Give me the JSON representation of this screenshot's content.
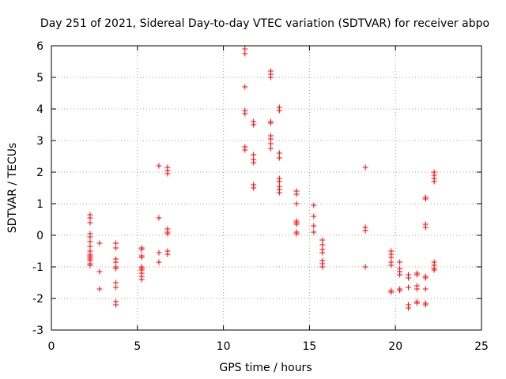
{
  "chart_data": {
    "type": "scatter",
    "title": "Day 251 of 2021, Sidereal Day-to-day VTEC variation (SDTVAR) for receiver abpo",
    "xlabel": "GPS time / hours",
    "ylabel": "SDTVAR / TECUs",
    "xlim": [
      0,
      25
    ],
    "ylim": [
      -3,
      6
    ],
    "xticks": [
      "0",
      "5",
      "10",
      "15",
      "20",
      "25"
    ],
    "yticks": [
      "-3",
      "-2",
      "-1",
      "0",
      "1",
      "2",
      "3",
      "4",
      "5",
      "6"
    ],
    "grid": true,
    "marker": "+",
    "marker_color": "#ff0000",
    "series": [
      {
        "name": "SDTVAR",
        "points": [
          [
            2.25,
            0.65
          ],
          [
            2.25,
            0.55
          ],
          [
            2.25,
            0.4
          ],
          [
            2.25,
            0.05
          ],
          [
            2.25,
            -0.05
          ],
          [
            2.25,
            -0.2
          ],
          [
            2.25,
            -0.35
          ],
          [
            2.25,
            -0.5
          ],
          [
            2.25,
            -0.6
          ],
          [
            2.25,
            -0.65
          ],
          [
            2.25,
            -0.7
          ],
          [
            2.25,
            -0.75
          ],
          [
            2.25,
            -0.8
          ],
          [
            2.25,
            -0.9
          ],
          [
            2.25,
            -0.95
          ],
          [
            2.8,
            -0.25
          ],
          [
            2.8,
            -1.15
          ],
          [
            2.8,
            -1.7
          ],
          [
            3.75,
            -0.25
          ],
          [
            3.75,
            -0.4
          ],
          [
            3.75,
            -0.75
          ],
          [
            3.75,
            -0.85
          ],
          [
            3.75,
            -1.0
          ],
          [
            3.75,
            -1.05
          ],
          [
            3.75,
            -1.5
          ],
          [
            3.75,
            -1.65
          ],
          [
            3.75,
            -2.1
          ],
          [
            3.75,
            -2.2
          ],
          [
            5.25,
            -0.4
          ],
          [
            5.25,
            -0.45
          ],
          [
            5.25,
            -0.65
          ],
          [
            5.25,
            -0.7
          ],
          [
            5.25,
            -1.0
          ],
          [
            5.25,
            -1.05
          ],
          [
            5.25,
            -1.1
          ],
          [
            5.25,
            -1.2
          ],
          [
            5.25,
            -1.3
          ],
          [
            5.25,
            -1.4
          ],
          [
            6.25,
            2.2
          ],
          [
            6.25,
            0.55
          ],
          [
            6.25,
            -0.55
          ],
          [
            6.25,
            -0.85
          ],
          [
            6.75,
            2.15
          ],
          [
            6.75,
            2.05
          ],
          [
            6.75,
            1.95
          ],
          [
            6.75,
            0.2
          ],
          [
            6.75,
            0.1
          ],
          [
            6.75,
            0.05
          ],
          [
            6.75,
            -0.5
          ],
          [
            6.75,
            -0.6
          ],
          [
            11.25,
            5.9
          ],
          [
            11.25,
            5.75
          ],
          [
            11.25,
            4.7
          ],
          [
            11.25,
            3.95
          ],
          [
            11.25,
            3.85
          ],
          [
            11.25,
            2.8
          ],
          [
            11.25,
            2.7
          ],
          [
            11.75,
            3.6
          ],
          [
            11.75,
            3.5
          ],
          [
            11.75,
            2.55
          ],
          [
            11.75,
            2.4
          ],
          [
            11.75,
            2.3
          ],
          [
            11.75,
            1.6
          ],
          [
            11.75,
            1.5
          ],
          [
            12.75,
            5.2
          ],
          [
            12.75,
            5.1
          ],
          [
            12.75,
            5.0
          ],
          [
            12.75,
            3.6
          ],
          [
            12.75,
            3.55
          ],
          [
            12.75,
            3.15
          ],
          [
            12.75,
            3.05
          ],
          [
            12.75,
            2.9
          ],
          [
            12.75,
            2.75
          ],
          [
            13.25,
            4.05
          ],
          [
            13.25,
            3.95
          ],
          [
            13.25,
            2.6
          ],
          [
            13.25,
            2.45
          ],
          [
            13.25,
            1.8
          ],
          [
            13.25,
            1.7
          ],
          [
            13.25,
            1.55
          ],
          [
            13.25,
            1.45
          ],
          [
            13.25,
            1.35
          ],
          [
            14.25,
            1.4
          ],
          [
            14.25,
            1.3
          ],
          [
            14.25,
            1.0
          ],
          [
            14.25,
            0.45
          ],
          [
            14.25,
            0.4
          ],
          [
            14.25,
            0.35
          ],
          [
            14.25,
            0.1
          ],
          [
            14.25,
            0.05
          ],
          [
            15.25,
            0.95
          ],
          [
            15.25,
            0.6
          ],
          [
            15.25,
            0.3
          ],
          [
            15.25,
            0.1
          ],
          [
            15.75,
            -0.15
          ],
          [
            15.75,
            -0.3
          ],
          [
            15.75,
            -0.45
          ],
          [
            15.75,
            -0.55
          ],
          [
            15.75,
            -0.8
          ],
          [
            15.75,
            -0.9
          ],
          [
            15.75,
            -1.0
          ],
          [
            18.25,
            2.15
          ],
          [
            18.25,
            0.25
          ],
          [
            18.25,
            0.15
          ],
          [
            18.25,
            -1.0
          ],
          [
            19.75,
            -0.5
          ],
          [
            19.75,
            -0.6
          ],
          [
            19.75,
            -0.7
          ],
          [
            19.75,
            -0.85
          ],
          [
            19.75,
            -0.95
          ],
          [
            19.75,
            -1.75
          ],
          [
            19.75,
            -1.8
          ],
          [
            20.25,
            -0.85
          ],
          [
            20.25,
            -1.05
          ],
          [
            20.25,
            -1.15
          ],
          [
            20.25,
            -1.25
          ],
          [
            20.25,
            -1.7
          ],
          [
            20.25,
            -1.75
          ],
          [
            20.75,
            -1.25
          ],
          [
            20.75,
            -1.35
          ],
          [
            20.75,
            -1.65
          ],
          [
            20.75,
            -2.2
          ],
          [
            20.75,
            -2.3
          ],
          [
            21.25,
            -1.2
          ],
          [
            21.25,
            -1.25
          ],
          [
            21.25,
            -1.6
          ],
          [
            21.25,
            -1.7
          ],
          [
            21.25,
            -2.1
          ],
          [
            21.25,
            -2.15
          ],
          [
            21.75,
            1.2
          ],
          [
            21.75,
            1.15
          ],
          [
            21.75,
            0.35
          ],
          [
            21.75,
            0.25
          ],
          [
            21.75,
            -1.3
          ],
          [
            21.75,
            -1.35
          ],
          [
            21.75,
            -1.7
          ],
          [
            21.75,
            -2.15
          ],
          [
            21.75,
            -2.2
          ],
          [
            22.25,
            2.0
          ],
          [
            22.25,
            1.9
          ],
          [
            22.25,
            1.8
          ],
          [
            22.25,
            1.7
          ],
          [
            22.25,
            -0.85
          ],
          [
            22.25,
            -0.95
          ],
          [
            22.25,
            -1.05
          ],
          [
            22.25,
            -1.1
          ]
        ]
      }
    ]
  }
}
